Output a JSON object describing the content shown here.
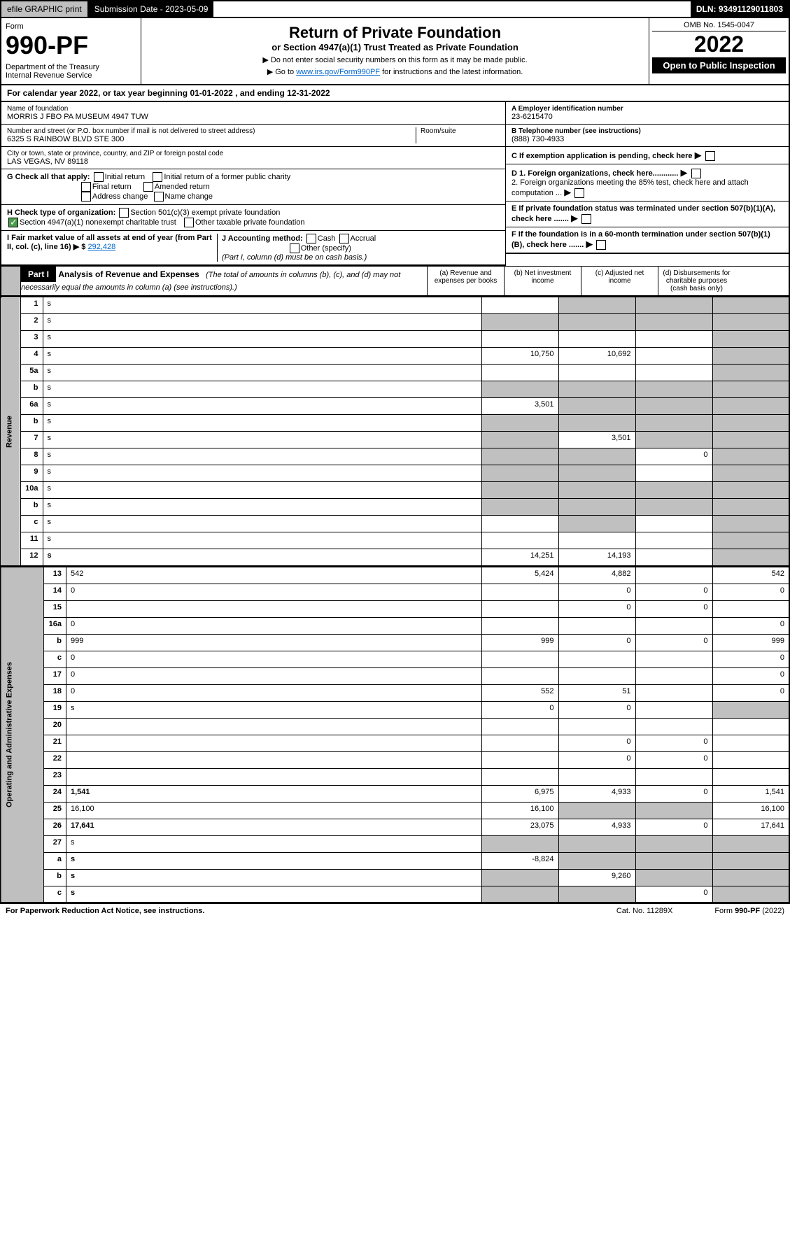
{
  "topbar": {
    "efile": "efile GRAPHIC print",
    "subdate_label": "Submission Date - 2023-05-09",
    "dln": "DLN: 93491129011803"
  },
  "header": {
    "form_label": "Form",
    "form_num": "990-PF",
    "dept": "Department of the Treasury\nInternal Revenue Service",
    "title": "Return of Private Foundation",
    "subtitle": "or Section 4947(a)(1) Trust Treated as Private Foundation",
    "note1": "▶ Do not enter social security numbers on this form as it may be made public.",
    "note2_pre": "▶ Go to ",
    "note2_link": "www.irs.gov/Form990PF",
    "note2_post": " for instructions and the latest information.",
    "omb": "OMB No. 1545-0047",
    "year": "2022",
    "open": "Open to Public Inspection"
  },
  "cal_year": "For calendar year 2022, or tax year beginning 01-01-2022              , and ending 12-31-2022",
  "info": {
    "name_lbl": "Name of foundation",
    "name": "MORRIS J FBO PA MUSEUM 4947 TUW",
    "addr_lbl": "Number and street (or P.O. box number if mail is not delivered to street address)",
    "addr": "6325 S RAINBOW BLVD STE 300",
    "room_lbl": "Room/suite",
    "city_lbl": "City or town, state or province, country, and ZIP or foreign postal code",
    "city": "LAS VEGAS, NV  89118",
    "a_lbl": "A Employer identification number",
    "a_val": "23-6215470",
    "b_lbl": "B Telephone number (see instructions)",
    "b_val": "(888) 730-4933",
    "c_lbl": "C If exemption application is pending, check here",
    "d1_lbl": "D 1. Foreign organizations, check here............",
    "d2_lbl": "2. Foreign organizations meeting the 85% test, check here and attach computation ...",
    "e_lbl": "E  If private foundation status was terminated under section 507(b)(1)(A), check here .......",
    "f_lbl": "F  If the foundation is in a 60-month termination under section 507(b)(1)(B), check here .......",
    "g_lbl": "G Check all that apply:",
    "g_opts": [
      "Initial return",
      "Initial return of a former public charity",
      "Final return",
      "Amended return",
      "Address change",
      "Name change"
    ],
    "h_lbl": "H Check type of organization:",
    "h_opts": [
      "Section 501(c)(3) exempt private foundation",
      "Section 4947(a)(1) nonexempt charitable trust",
      "Other taxable private foundation"
    ],
    "i_lbl": "I Fair market value of all assets at end of year (from Part II, col. (c), line 16) ▶ $",
    "i_val": "292,428",
    "j_lbl": "J Accounting method:",
    "j_opts": [
      "Cash",
      "Accrual",
      "Other (specify)"
    ],
    "j_note": "(Part I, column (d) must be on cash basis.)"
  },
  "part1": {
    "label": "Part I",
    "title": "Analysis of Revenue and Expenses",
    "title_note": "(The total of amounts in columns (b), (c), and (d) may not necessarily equal the amounts in column (a) (see instructions).)",
    "cols": {
      "a": "(a)  Revenue and expenses per books",
      "b": "(b)  Net investment income",
      "c": "(c)  Adjusted net income",
      "d": "(d)  Disbursements for charitable purposes (cash basis only)"
    }
  },
  "side": {
    "revenue": "Revenue",
    "opex": "Operating and Administrative Expenses"
  },
  "rows": [
    {
      "n": "1",
      "d": "s",
      "a": "",
      "b": "s",
      "c": "s"
    },
    {
      "n": "2",
      "d": "s",
      "a": "s",
      "b": "s",
      "c": "s",
      "bold_not": true
    },
    {
      "n": "3",
      "d": "s",
      "a": "",
      "b": "",
      "c": ""
    },
    {
      "n": "4",
      "d": "s",
      "a": "10,750",
      "b": "10,692",
      "c": ""
    },
    {
      "n": "5a",
      "d": "s",
      "a": "",
      "b": "",
      "c": ""
    },
    {
      "n": "b",
      "d": "s",
      "a": "s",
      "b": "s",
      "c": "s"
    },
    {
      "n": "6a",
      "d": "s",
      "a": "3,501",
      "b": "s",
      "c": "s"
    },
    {
      "n": "b",
      "d": "s",
      "a": "s",
      "b": "s",
      "c": "s"
    },
    {
      "n": "7",
      "d": "s",
      "a": "s",
      "b": "3,501",
      "c": "s"
    },
    {
      "n": "8",
      "d": "s",
      "a": "s",
      "b": "s",
      "c": "0"
    },
    {
      "n": "9",
      "d": "s",
      "a": "s",
      "b": "s",
      "c": ""
    },
    {
      "n": "10a",
      "d": "s",
      "a": "s",
      "b": "s",
      "c": "s"
    },
    {
      "n": "b",
      "d": "s",
      "a": "s",
      "b": "s",
      "c": "s"
    },
    {
      "n": "c",
      "d": "s",
      "a": "",
      "b": "s",
      "c": ""
    },
    {
      "n": "11",
      "d": "s",
      "a": "",
      "b": "",
      "c": ""
    },
    {
      "n": "12",
      "d": "s",
      "a": "14,251",
      "b": "14,193",
      "c": "",
      "bold": true
    }
  ],
  "rows2": [
    {
      "n": "13",
      "d": "542",
      "a": "5,424",
      "b": "4,882",
      "c": ""
    },
    {
      "n": "14",
      "d": "0",
      "a": "",
      "b": "0",
      "c": "0"
    },
    {
      "n": "15",
      "d": "",
      "a": "",
      "b": "0",
      "c": "0"
    },
    {
      "n": "16a",
      "d": "0",
      "a": "",
      "b": "",
      "c": ""
    },
    {
      "n": "b",
      "d": "999",
      "a": "999",
      "b": "0",
      "c": "0"
    },
    {
      "n": "c",
      "d": "0",
      "a": "",
      "b": "",
      "c": ""
    },
    {
      "n": "17",
      "d": "0",
      "a": "",
      "b": "",
      "c": ""
    },
    {
      "n": "18",
      "d": "0",
      "a": "552",
      "b": "51",
      "c": ""
    },
    {
      "n": "19",
      "d": "s",
      "a": "0",
      "b": "0",
      "c": ""
    },
    {
      "n": "20",
      "d": "",
      "a": "",
      "b": "",
      "c": ""
    },
    {
      "n": "21",
      "d": "",
      "a": "",
      "b": "0",
      "c": "0"
    },
    {
      "n": "22",
      "d": "",
      "a": "",
      "b": "0",
      "c": "0"
    },
    {
      "n": "23",
      "d": "",
      "a": "",
      "b": "",
      "c": ""
    },
    {
      "n": "24",
      "d": "1,541",
      "a": "6,975",
      "b": "4,933",
      "c": "0",
      "bold": true
    },
    {
      "n": "25",
      "d": "16,100",
      "a": "16,100",
      "b": "s",
      "c": "s"
    },
    {
      "n": "26",
      "d": "17,641",
      "a": "23,075",
      "b": "4,933",
      "c": "0",
      "bold": true
    },
    {
      "n": "27",
      "d": "s",
      "a": "s",
      "b": "s",
      "c": "s"
    },
    {
      "n": "a",
      "d": "s",
      "a": "-8,824",
      "b": "s",
      "c": "s",
      "bold": true
    },
    {
      "n": "b",
      "d": "s",
      "a": "s",
      "b": "9,260",
      "c": "s",
      "bold": true
    },
    {
      "n": "c",
      "d": "s",
      "a": "s",
      "b": "s",
      "c": "0",
      "bold": true
    }
  ],
  "footer": {
    "left": "For Paperwork Reduction Act Notice, see instructions.",
    "mid": "Cat. No. 11289X",
    "right": "Form 990-PF (2022)"
  }
}
